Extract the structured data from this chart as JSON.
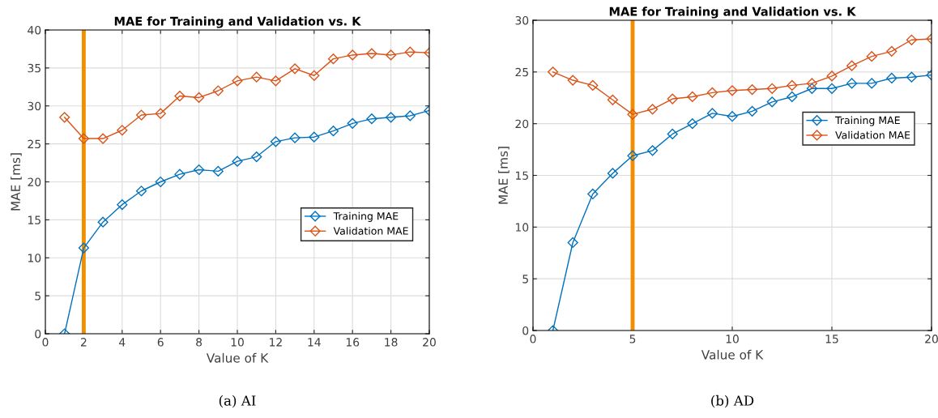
{
  "chart_data": [
    {
      "type": "line",
      "title": "MAE for Training and Validation vs. K",
      "xlabel": "Value of K",
      "ylabel": "MAE [ms]",
      "x": [
        1,
        2,
        3,
        4,
        5,
        6,
        7,
        8,
        9,
        10,
        11,
        12,
        13,
        14,
        15,
        16,
        17,
        18,
        19,
        20
      ],
      "series": [
        {
          "name": "Training MAE",
          "color": "#0072bd",
          "values": [
            0,
            11.3,
            14.7,
            17.0,
            18.8,
            20.0,
            21.0,
            21.6,
            21.4,
            22.7,
            23.3,
            25.3,
            25.8,
            25.9,
            26.7,
            27.7,
            28.3,
            28.5,
            28.7,
            29.4
          ]
        },
        {
          "name": "Validation MAE",
          "color": "#d95319",
          "values": [
            28.5,
            25.7,
            25.7,
            26.8,
            28.8,
            29.0,
            31.3,
            31.1,
            32.0,
            33.3,
            33.8,
            33.3,
            34.9,
            34.0,
            36.2,
            36.7,
            36.9,
            36.7,
            37.1,
            37.0
          ]
        }
      ],
      "xlim": [
        0,
        20
      ],
      "xticks": [
        0,
        2,
        4,
        6,
        8,
        10,
        12,
        14,
        16,
        18,
        20
      ],
      "ylim": [
        0,
        40
      ],
      "yticks": [
        0,
        5,
        10,
        15,
        20,
        25,
        30,
        35,
        40
      ],
      "ref_lines": [
        {
          "axis": "x",
          "value": 2,
          "color": "#f28e00"
        }
      ],
      "grid": true,
      "legend": "center right",
      "marker": "diamond",
      "line_style": "solid",
      "annotations": [
        "(a) AI"
      ]
    },
    {
      "type": "line",
      "title": "MAE for Training and Validation vs. K",
      "xlabel": "Value of K",
      "ylabel": "MAE [ms]",
      "x": [
        1,
        2,
        3,
        4,
        5,
        6,
        7,
        8,
        9,
        10,
        11,
        12,
        13,
        14,
        15,
        16,
        17,
        18,
        19,
        20
      ],
      "series": [
        {
          "name": "Training MAE",
          "color": "#0072bd",
          "values": [
            0,
            8.5,
            13.2,
            15.2,
            16.9,
            17.4,
            19.0,
            20.0,
            21.0,
            20.7,
            21.2,
            22.1,
            22.6,
            23.4,
            23.4,
            23.9,
            23.9,
            24.4,
            24.5,
            24.7
          ]
        },
        {
          "name": "Validation MAE",
          "color": "#d95319",
          "values": [
            25.0,
            24.2,
            23.7,
            22.3,
            20.9,
            21.4,
            22.4,
            22.6,
            23.0,
            23.2,
            23.3,
            23.4,
            23.7,
            23.9,
            24.6,
            25.6,
            26.5,
            27.0,
            28.1,
            28.2
          ]
        }
      ],
      "xlim": [
        0,
        20
      ],
      "xticks": [
        0,
        5,
        10,
        15,
        20
      ],
      "ylim": [
        0,
        30
      ],
      "yticks": [
        0,
        5,
        10,
        15,
        20,
        25,
        30
      ],
      "ref_lines": [
        {
          "axis": "x",
          "value": 5,
          "color": "#f28e00"
        }
      ],
      "grid": true,
      "legend": "upper right",
      "marker": "diamond",
      "line_style": "solid",
      "annotations": [
        "(b) AD"
      ]
    }
  ]
}
